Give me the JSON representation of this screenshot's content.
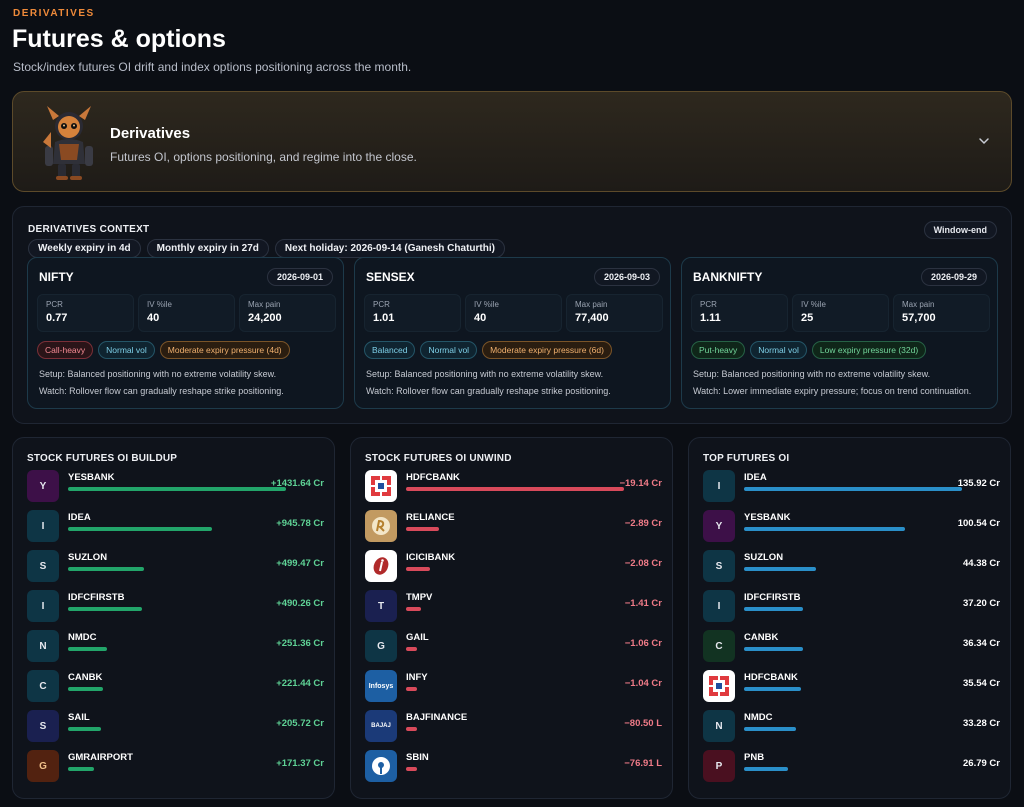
{
  "header": {
    "eyebrow": "DERIVATIVES",
    "title": "Futures & options",
    "subtitle": "Stock/index futures OI drift and index options positioning across the month."
  },
  "hero": {
    "title": "Derivatives",
    "description": "Futures OI, options positioning, and regime into the close.",
    "mascot_icon": "warrior-mascot",
    "toggle_icon": "chevron-down-icon"
  },
  "context": {
    "title": "DERIVATIVES CONTEXT",
    "window_badge": "Window-end",
    "pills": [
      "Weekly expiry in 4d",
      "Monthly expiry in 27d",
      "Next holiday: 2026-09-14 (Ganesh Chaturthi)"
    ],
    "metric_labels": [
      "PCR",
      "IV %ile",
      "Max pain"
    ],
    "indices": [
      {
        "name": "NIFTY",
        "date": "2026-09-01",
        "pcr": "0.77",
        "iv": "40",
        "max_pain": "24,200",
        "tags": [
          {
            "label": "Call-heavy",
            "tone": "red"
          },
          {
            "label": "Normal vol",
            "tone": "blue"
          },
          {
            "label": "Moderate expiry pressure (4d)",
            "tone": "orange"
          }
        ],
        "setup": "Setup: Balanced positioning with no extreme volatility skew.",
        "watch": "Watch: Rollover flow can gradually reshape strike positioning."
      },
      {
        "name": "SENSEX",
        "date": "2026-09-03",
        "pcr": "1.01",
        "iv": "40",
        "max_pain": "77,400",
        "tags": [
          {
            "label": "Balanced",
            "tone": "blue"
          },
          {
            "label": "Normal vol",
            "tone": "blue"
          },
          {
            "label": "Moderate expiry pressure (6d)",
            "tone": "orange"
          }
        ],
        "setup": "Setup: Balanced positioning with no extreme volatility skew.",
        "watch": "Watch: Rollover flow can gradually reshape strike positioning."
      },
      {
        "name": "BANKNIFTY",
        "date": "2026-09-29",
        "pcr": "1.11",
        "iv": "25",
        "max_pain": "57,700",
        "tags": [
          {
            "label": "Put-heavy",
            "tone": "green"
          },
          {
            "label": "Normal vol",
            "tone": "blue"
          },
          {
            "label": "Low expiry pressure (32d)",
            "tone": "green"
          }
        ],
        "setup": "Setup: Balanced positioning with no extreme volatility skew.",
        "watch": "Watch: Lower immediate expiry pressure; focus on trend continuation."
      }
    ]
  },
  "buildup": {
    "title": "STOCK FUTURES OI BUILDUP",
    "rows": [
      {
        "letter": "Y",
        "symbol": "YESBANK",
        "value": "+1431.64 Cr",
        "fill": 1.0,
        "avatar": "av-purple"
      },
      {
        "letter": "I",
        "symbol": "IDEA",
        "value": "+945.78 Cr",
        "fill": 0.66,
        "avatar": "av-teal"
      },
      {
        "letter": "S",
        "symbol": "SUZLON",
        "value": "+499.47 Cr",
        "fill": 0.35,
        "avatar": "av-teal"
      },
      {
        "letter": "I",
        "symbol": "IDFCFIRSTB",
        "value": "+490.26 Cr",
        "fill": 0.34,
        "avatar": "av-teal"
      },
      {
        "letter": "N",
        "symbol": "NMDC",
        "value": "+251.36 Cr",
        "fill": 0.18,
        "avatar": "av-teal"
      },
      {
        "letter": "C",
        "symbol": "CANBK",
        "value": "+221.44 Cr",
        "fill": 0.16,
        "avatar": "av-teal"
      },
      {
        "letter": "S",
        "symbol": "SAIL",
        "value": "+205.72 Cr",
        "fill": 0.15,
        "avatar": "av-navy"
      },
      {
        "letter": "G",
        "symbol": "GMRAIRPORT",
        "value": "+171.37 Cr",
        "fill": 0.12,
        "avatar": "av-brown"
      }
    ]
  },
  "unwind": {
    "title": "STOCK FUTURES OI UNWIND",
    "rows": [
      {
        "letter": "",
        "symbol": "HDFCBANK",
        "value": "−19.14 Cr",
        "fill": 1.0,
        "avatar": "av-white",
        "logo": "hdfc"
      },
      {
        "letter": "",
        "symbol": "RELIANCE",
        "value": "−2.89 Cr",
        "fill": 0.15,
        "avatar": "av-orange",
        "logo": "reliance"
      },
      {
        "letter": "",
        "symbol": "ICICIBANK",
        "value": "−2.08 Cr",
        "fill": 0.11,
        "avatar": "av-white",
        "logo": "icici"
      },
      {
        "letter": "T",
        "symbol": "TMPV",
        "value": "−1.41 Cr",
        "fill": 0.07,
        "avatar": "av-navy"
      },
      {
        "letter": "G",
        "symbol": "GAIL",
        "value": "−1.06 Cr",
        "fill": 0.05,
        "avatar": "av-teal"
      },
      {
        "letter": "",
        "symbol": "INFY",
        "value": "−1.04 Cr",
        "fill": 0.05,
        "avatar": "av-blue",
        "logo": "infy",
        "logo_text": "Infosys"
      },
      {
        "letter": "",
        "symbol": "BAJFINANCE",
        "value": "−80.50 L",
        "fill": 0.05,
        "avatar": "av-bank",
        "logo": "bajaj",
        "logo_text": "BAJAJ"
      },
      {
        "letter": "",
        "symbol": "SBIN",
        "value": "−76.91 L",
        "fill": 0.05,
        "avatar": "av-blue",
        "logo": "sbi"
      }
    ]
  },
  "topoi": {
    "title": "TOP FUTURES OI",
    "rows": [
      {
        "letter": "I",
        "symbol": "IDEA",
        "value": "135.92 Cr",
        "fill": 1.0,
        "avatar": "av-teal"
      },
      {
        "letter": "Y",
        "symbol": "YESBANK",
        "value": "100.54 Cr",
        "fill": 0.74,
        "avatar": "av-purple"
      },
      {
        "letter": "S",
        "symbol": "SUZLON",
        "value": "44.38 Cr",
        "fill": 0.33,
        "avatar": "av-teal"
      },
      {
        "letter": "I",
        "symbol": "IDFCFIRSTB",
        "value": "37.20 Cr",
        "fill": 0.27,
        "avatar": "av-teal"
      },
      {
        "letter": "C",
        "symbol": "CANBK",
        "value": "36.34 Cr",
        "fill": 0.27,
        "avatar": "av-green"
      },
      {
        "letter": "",
        "symbol": "HDFCBANK",
        "value": "35.54 Cr",
        "fill": 0.26,
        "avatar": "av-white",
        "logo": "hdfc"
      },
      {
        "letter": "N",
        "symbol": "NMDC",
        "value": "33.28 Cr",
        "fill": 0.24,
        "avatar": "av-teal"
      },
      {
        "letter": "P",
        "symbol": "PNB",
        "value": "26.79 Cr",
        "fill": 0.2,
        "avatar": "av-maroon"
      }
    ]
  }
}
